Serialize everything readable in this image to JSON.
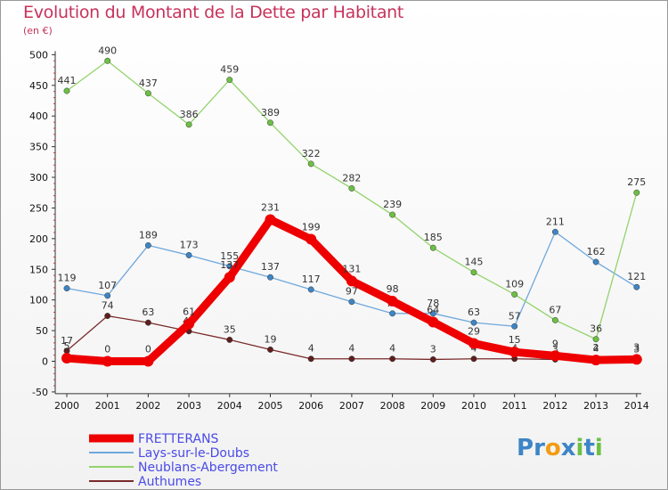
{
  "chart_data": {
    "type": "line",
    "title": "Evolution du Montant de la Dette par Habitant",
    "subtitle": "(en €)",
    "xlabel": "",
    "ylabel": "",
    "x": [
      "2000",
      "2001",
      "2002",
      "2003",
      "2004",
      "2005",
      "2006",
      "2007",
      "2008",
      "2009",
      "2010",
      "2011",
      "2012",
      "2013",
      "2014"
    ],
    "ylim": [
      -50,
      500
    ],
    "yticks": [
      -50,
      0,
      50,
      100,
      150,
      200,
      250,
      300,
      350,
      400,
      450,
      500
    ],
    "grid": "none",
    "legend_position": "bottom-left",
    "series": [
      {
        "name": "Lays-sur-le-Doubs",
        "color": "#6fa8dc",
        "marker": "#3d85c6",
        "values": [
          119,
          107,
          189,
          173,
          155,
          137,
          117,
          97,
          78,
          78,
          63,
          57,
          211,
          162,
          121
        ],
        "labels": [
          "119",
          "107",
          "189",
          "173",
          "155",
          "137",
          "117",
          "97",
          "78",
          "78",
          "63",
          "57",
          "211",
          "162",
          "121"
        ]
      },
      {
        "name": "Neublans-Abergement",
        "color": "#93d36b",
        "marker": "#6cc043",
        "values": [
          441,
          490,
          437,
          386,
          459,
          389,
          322,
          282,
          239,
          185,
          145,
          109,
          67,
          36,
          275
        ],
        "labels": [
          "441",
          "490",
          "437",
          "386",
          "459",
          "389",
          "322",
          "282",
          "239",
          "185",
          "145",
          "109",
          "67",
          "36",
          "275"
        ]
      },
      {
        "name": "Authumes",
        "color": "#7a2a2a",
        "marker": "#5e1e1e",
        "values": [
          17,
          74,
          63,
          49,
          35,
          19,
          4,
          4,
          4,
          3,
          4,
          4,
          3,
          4,
          3
        ],
        "labels": [
          "17",
          "74",
          "63",
          "49",
          "35",
          "19",
          "4",
          "4",
          "4",
          "3",
          "4",
          "4",
          "3",
          "4",
          "3"
        ]
      },
      {
        "name": "FRETTERANS",
        "color": "#ee0000",
        "marker": "#ee0000",
        "bold": true,
        "values": [
          5,
          0,
          0,
          61,
          137,
          231,
          199,
          131,
          98,
          64,
          29,
          15,
          9,
          2,
          3
        ],
        "labels": [
          "5",
          "0",
          "0",
          "61",
          "137",
          "231",
          "199",
          "131",
          "98",
          "64",
          "29",
          "15",
          "9",
          "2",
          "3"
        ]
      }
    ],
    "legend": [
      "FRETTERANS",
      "Lays-sur-le-Doubs",
      "Neublans-Abergement",
      "Authumes"
    ]
  },
  "brand": {
    "text": "Proxiti",
    "letters": [
      "P",
      "r",
      "o",
      "x",
      "i",
      "t",
      "i"
    ],
    "colors": [
      "#3d85c6",
      "#3d85c6",
      "#f39c12",
      "#3d85c6",
      "#6cc043",
      "#3d85c6",
      "#6cc043"
    ]
  }
}
